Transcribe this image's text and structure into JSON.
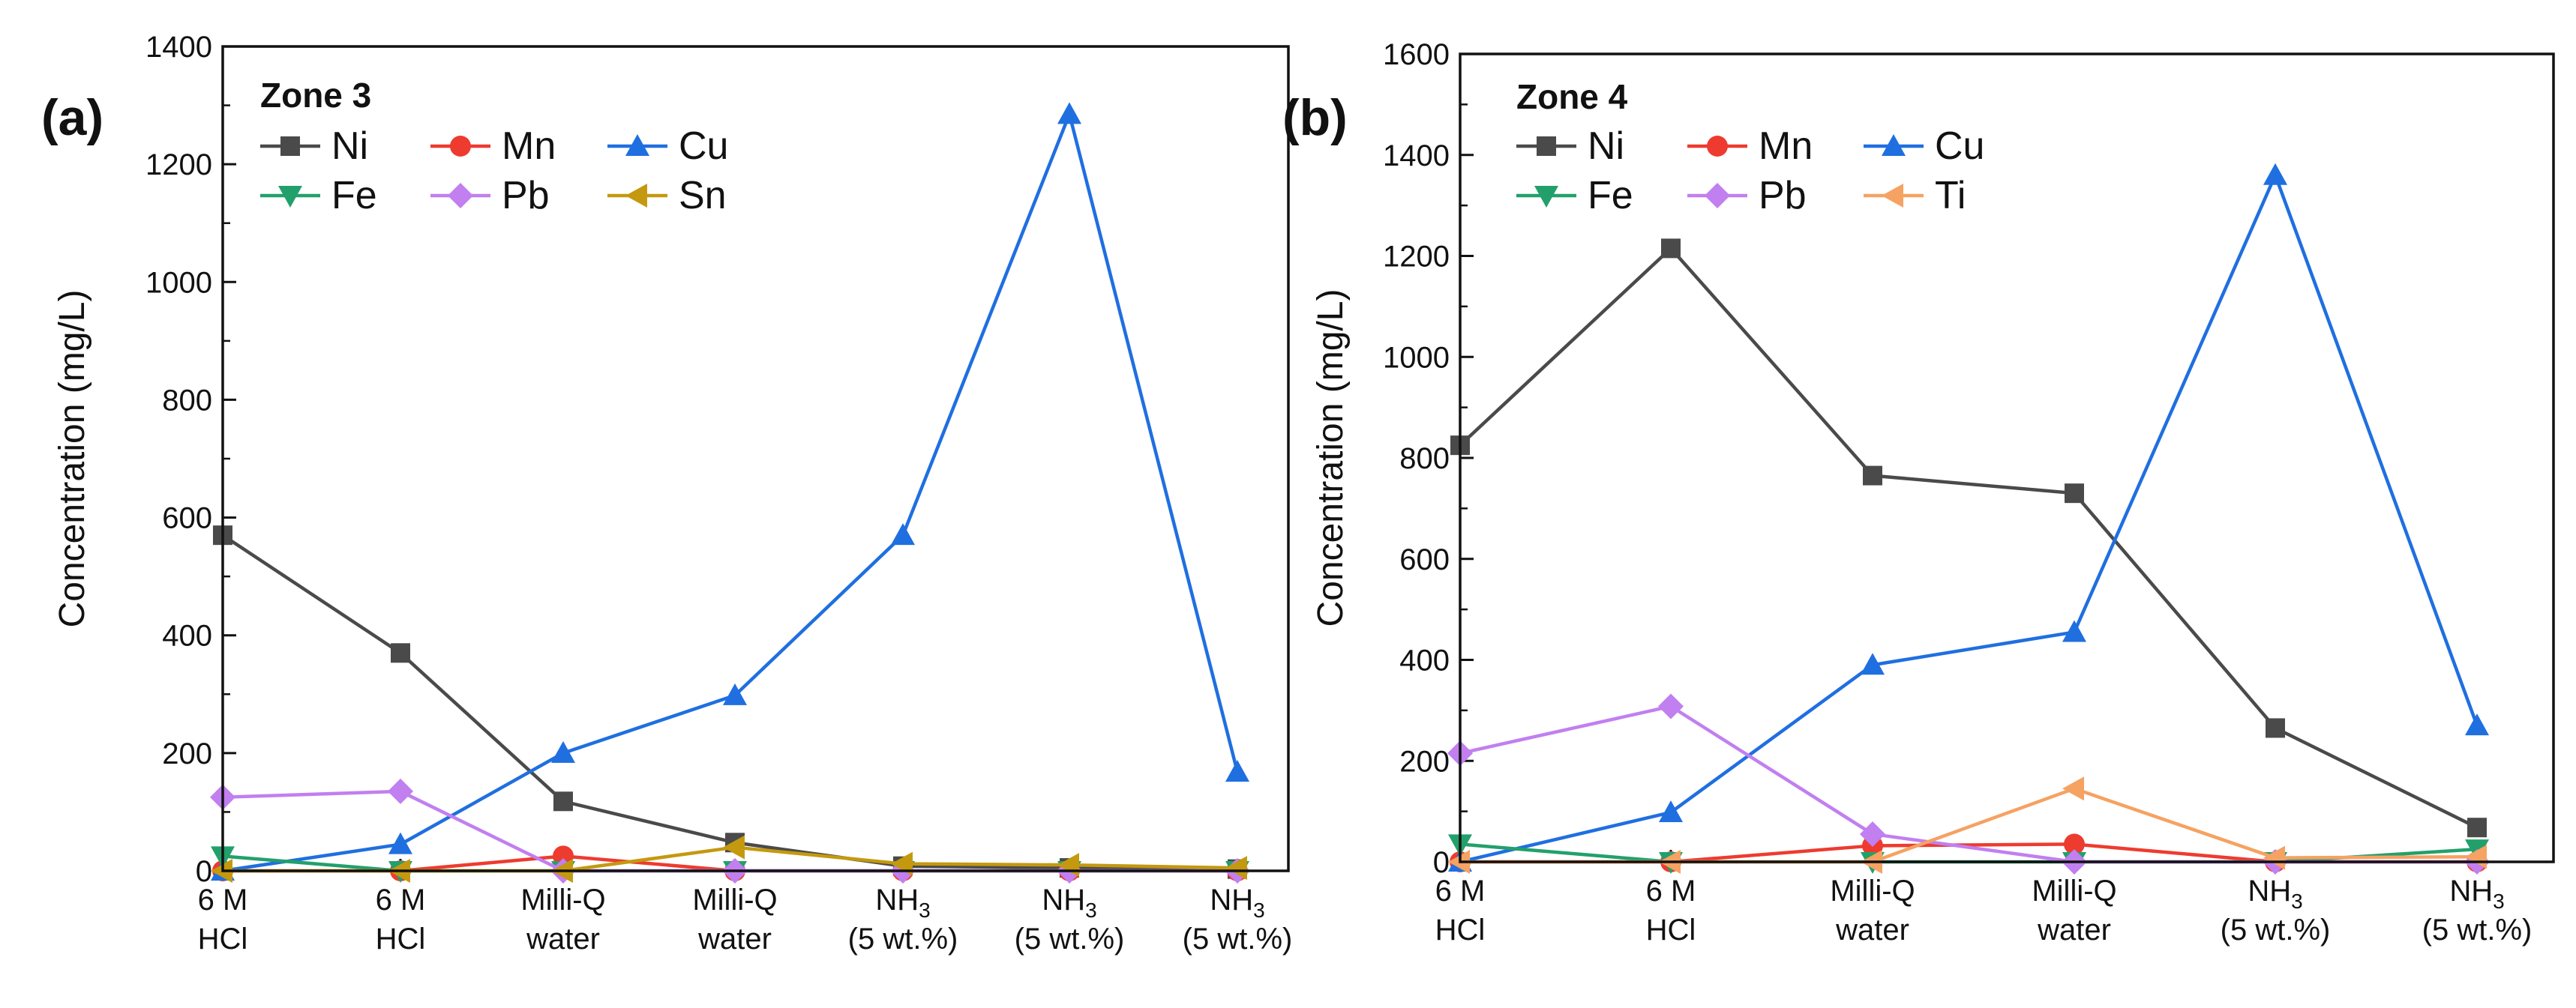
{
  "chart_data": [
    {
      "type": "line",
      "panel": "(a)",
      "title": "Zone 3",
      "ylabel": "Concentration (mg/L)",
      "xlabel": "",
      "ylim": [
        0,
        1400
      ],
      "yticks": [
        "0",
        "200",
        "400",
        "600",
        "800",
        "1000",
        "1200",
        "1400"
      ],
      "categories": [
        [
          "6 M",
          "HCl"
        ],
        [
          "6 M",
          "HCl"
        ],
        [
          "Milli-Q",
          "water"
        ],
        [
          "Milli-Q",
          "water"
        ],
        [
          "NH3",
          "(5 wt.%)"
        ],
        [
          "NH3",
          "(5 wt.%)"
        ],
        [
          "NH3",
          "(5 wt.%)"
        ]
      ],
      "legend_position": "top-left",
      "series": [
        {
          "name": "Ni",
          "color": "#4a4a4a",
          "marker": "square",
          "values": [
            570,
            370,
            118,
            48,
            8,
            5,
            3
          ]
        },
        {
          "name": "Mn",
          "color": "#ee3b2f",
          "marker": "circle",
          "values": [
            0,
            0,
            25,
            0,
            0,
            0,
            0
          ]
        },
        {
          "name": "Cu",
          "color": "#1f6fe0",
          "marker": "triangle-up",
          "values": [
            0,
            45,
            200,
            298,
            570,
            1285,
            168
          ]
        },
        {
          "name": "Fe",
          "color": "#22a06b",
          "marker": "triangle-down",
          "values": [
            25,
            0,
            0,
            0,
            0,
            0,
            0
          ]
        },
        {
          "name": "Pb",
          "color": "#c17ff0",
          "marker": "diamond",
          "values": [
            125,
            135,
            0,
            0,
            0,
            0,
            0
          ]
        },
        {
          "name": "Sn",
          "color": "#c4990f",
          "marker": "triangle-left",
          "values": [
            0,
            0,
            0,
            40,
            12,
            10,
            5
          ]
        }
      ]
    },
    {
      "type": "line",
      "panel": "(b)",
      "title": "Zone 4",
      "ylabel": "Concentration (mg/L)",
      "xlabel": "",
      "ylim": [
        0,
        1600
      ],
      "yticks": [
        "0",
        "200",
        "400",
        "600",
        "800",
        "1000",
        "1200",
        "1400",
        "1600"
      ],
      "categories": [
        [
          "6 M",
          "HCl"
        ],
        [
          "6 M",
          "HCl"
        ],
        [
          "Milli-Q",
          "water"
        ],
        [
          "Milli-Q",
          "water"
        ],
        [
          "NH3",
          "(5 wt.%)"
        ],
        [
          "NH3",
          "(5 wt.%)"
        ]
      ],
      "legend_position": "top-left",
      "series": [
        {
          "name": "Ni",
          "color": "#4a4a4a",
          "marker": "square",
          "values": [
            825,
            1215,
            765,
            730,
            265,
            68
          ]
        },
        {
          "name": "Mn",
          "color": "#ee3b2f",
          "marker": "circle",
          "values": [
            0,
            0,
            32,
            35,
            0,
            0
          ]
        },
        {
          "name": "Cu",
          "color": "#1f6fe0",
          "marker": "triangle-up",
          "values": [
            0,
            98,
            390,
            455,
            1360,
            270
          ]
        },
        {
          "name": "Fe",
          "color": "#22a06b",
          "marker": "triangle-down",
          "values": [
            35,
            0,
            0,
            0,
            0,
            25
          ]
        },
        {
          "name": "Pb",
          "color": "#c17ff0",
          "marker": "diamond",
          "values": [
            215,
            308,
            55,
            0,
            0,
            0
          ]
        },
        {
          "name": "Ti",
          "color": "#f5a262",
          "marker": "triangle-left",
          "values": [
            0,
            0,
            0,
            145,
            8,
            10
          ]
        }
      ]
    }
  ]
}
